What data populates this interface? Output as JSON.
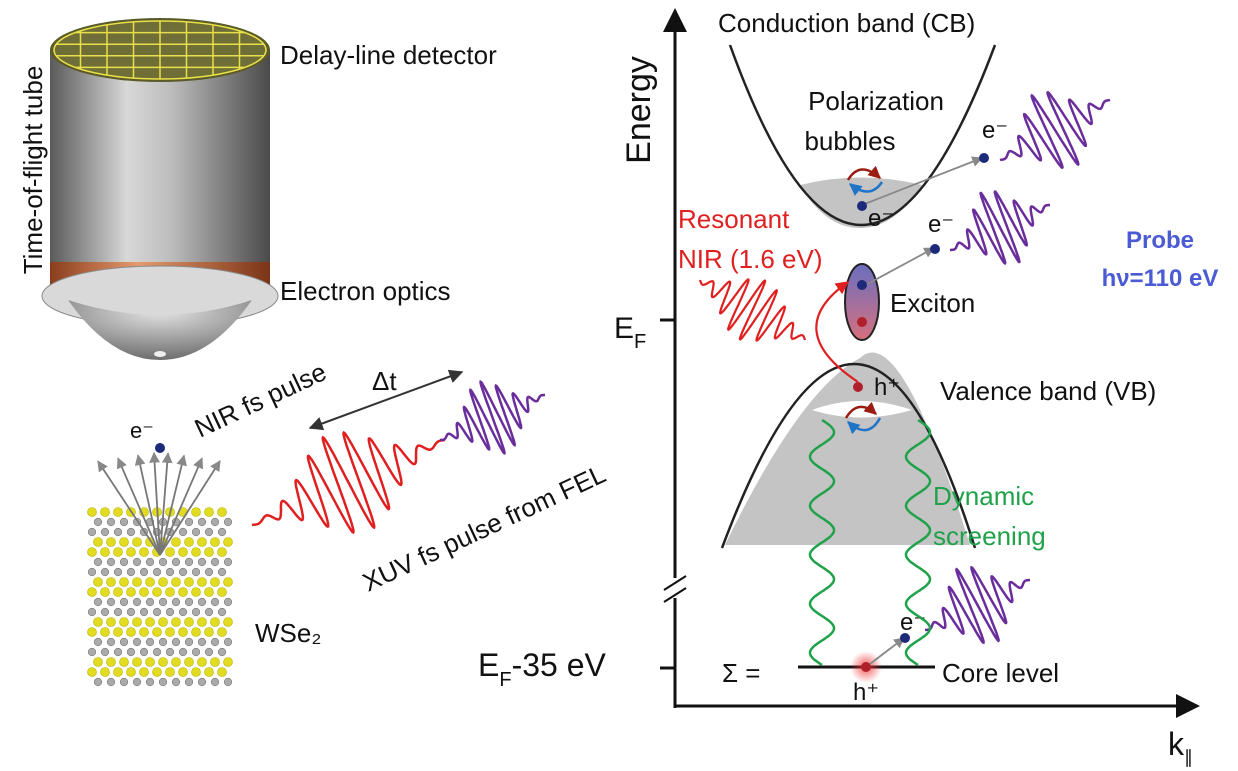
{
  "setup": {
    "tube_label": "Time-of-flight tube",
    "detector_label": "Delay-line detector",
    "optics_label": "Electron optics",
    "nir_pulse_label": "NIR fs pulse",
    "delay_label": "Δt",
    "electron_label": "e⁻",
    "xuv_pulse_label": "XUV fs pulse from FEL",
    "sample_label": "WSe₂"
  },
  "band_diagram": {
    "y_axis_label": "Energy",
    "x_axis_label": {
      "main": "k",
      "sub": "∥"
    },
    "fermi_level": {
      "main": "E",
      "sub": "F"
    },
    "core_energy": {
      "main": "E",
      "sub": "F",
      "rest": "-35 eV"
    },
    "conduction_band": "Conduction band (CB)",
    "polarization": [
      "Polarization",
      "bubbles"
    ],
    "resonant": [
      "Resonant",
      "NIR (1.6 eV)"
    ],
    "exciton": "Exciton",
    "probe": [
      "Probe",
      "hν=110 eV"
    ],
    "valence_band": "Valence band (VB)",
    "dynamic_screening": [
      "Dynamic",
      "screening"
    ],
    "sigma": "Σ =",
    "core_level": "Core level",
    "electron_labels": [
      "e⁻",
      "e⁻",
      "e⁻",
      "e⁻"
    ],
    "hole_labels": [
      "h⁺",
      "h⁺"
    ]
  }
}
